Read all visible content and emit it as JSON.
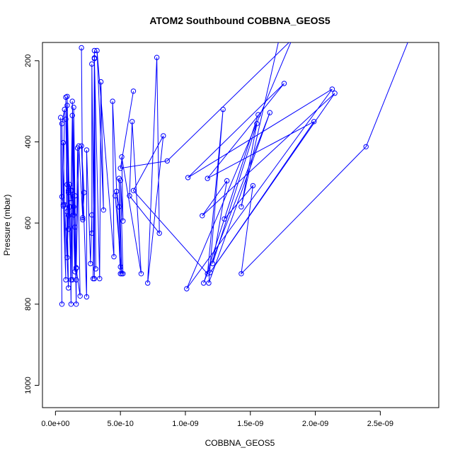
{
  "chart_data": {
    "type": "line",
    "title": "ATOM2 Southbound COBBNA_GEOS5",
    "xlabel": "COBBNA_GEOS5",
    "ylabel": "Pressure (mbar)",
    "xlim": [
      -1e-10,
      2.95e-09
    ],
    "ylim": [
      1055,
      155
    ],
    "y_reversed": true,
    "x_ticks": [
      0,
      5e-10,
      1e-09,
      1.5e-09,
      2e-09,
      2.5e-09
    ],
    "x_tick_labels": [
      "0.0e+00",
      "5.0e-10",
      "1.0e-09",
      "1.5e-09",
      "2.0e-09",
      "2.5e-09"
    ],
    "y_ticks": [
      200,
      400,
      600,
      800,
      1000
    ],
    "y_tick_labels": [
      "200",
      "400",
      "600",
      "800",
      "1000"
    ],
    "grid": false,
    "series": [
      {
        "color": "#0000ff",
        "marker": "open-circle",
        "points": [
          [
            5e-11,
            800
          ],
          [
            4e-11,
            340
          ],
          [
            5e-11,
            535
          ],
          [
            6e-11,
            555
          ],
          [
            5e-11,
            355
          ],
          [
            7e-11,
            320
          ],
          [
            6e-11,
            558
          ],
          [
            8e-11,
            740
          ],
          [
            6e-11,
            402
          ],
          [
            7e-11,
            555
          ],
          [
            1e-10,
            760
          ],
          [
            8e-11,
            344
          ],
          [
            9e-11,
            505
          ],
          [
            9e-11,
            572
          ],
          [
            1e-10,
            615
          ],
          [
            9e-11,
            310
          ],
          [
            1e-10,
            582
          ],
          [
            9e-11,
            685
          ],
          [
            8e-11,
            290
          ],
          [
            1e-10,
            520
          ],
          [
            1.2e-10,
            740
          ],
          [
            9e-11,
            288
          ],
          [
            1e-10,
            525
          ],
          [
            1.1e-10,
            560
          ],
          [
            1.2e-10,
            800
          ],
          [
            1.2e-10,
            520
          ],
          [
            1.1e-10,
            505
          ],
          [
            1.2e-10,
            550
          ],
          [
            1.3e-10,
            740
          ],
          [
            1.3e-10,
            335
          ],
          [
            1.2e-10,
            520
          ],
          [
            1.4e-10,
            580
          ],
          [
            1.3e-10,
            520
          ],
          [
            1.5e-10,
            720
          ],
          [
            1.4e-10,
            315
          ],
          [
            1.5e-10,
            533
          ],
          [
            1.6e-10,
            740
          ],
          [
            1.3e-10,
            300
          ],
          [
            1.4e-10,
            560
          ],
          [
            1.5e-10,
            610
          ],
          [
            1.6e-10,
            800
          ],
          [
            1.6e-10,
            710
          ],
          [
            1.7e-10,
            415
          ],
          [
            1.9e-10,
            780
          ],
          [
            1.6e-10,
            712
          ],
          [
            1.8e-10,
            410
          ],
          [
            2.1e-10,
            587
          ],
          [
            2e-10,
            168
          ],
          [
            2.1e-10,
            592
          ],
          [
            2.2e-10,
            525
          ],
          [
            2e-10,
            410
          ],
          [
            2.4e-10,
            782
          ],
          [
            2.4e-10,
            420
          ],
          [
            2.7e-10,
            700
          ],
          [
            2.8e-10,
            580
          ],
          [
            2.8e-10,
            625
          ],
          [
            2.8e-10,
            208
          ],
          [
            3e-10,
            737
          ],
          [
            3e-10,
            193
          ],
          [
            3.1e-10,
            713
          ],
          [
            3e-10,
            175
          ],
          [
            2.9e-10,
            737
          ],
          [
            3e-10,
            195
          ],
          [
            3.4e-10,
            737
          ],
          [
            3.5e-10,
            252
          ],
          [
            3.7e-10,
            568
          ],
          [
            3.2e-10,
            175
          ],
          [
            4.5e-10,
            683
          ],
          [
            4.4e-10,
            300
          ],
          [
            5e-10,
            725
          ],
          [
            4.9e-10,
            560
          ],
          [
            4.7e-10,
            522
          ],
          [
            4.6e-10,
            533
          ],
          [
            5.1e-10,
            725
          ],
          [
            4.9e-10,
            490
          ],
          [
            5e-10,
            708
          ],
          [
            5.2e-10,
            725
          ],
          [
            5e-10,
            495
          ],
          [
            5.2e-10,
            595
          ],
          [
            5.1e-10,
            437
          ],
          [
            6.6e-10,
            725
          ],
          [
            5.9e-10,
            350
          ],
          [
            5.7e-10,
            533
          ],
          [
            8e-10,
            625
          ],
          [
            7.8e-10,
            192
          ],
          [
            7.1e-10,
            748
          ],
          [
            8.3e-10,
            385
          ],
          [
            6e-10,
            520
          ],
          [
            1.17e-09,
            725
          ],
          [
            1.29e-09,
            320
          ],
          [
            1.18e-09,
            748
          ],
          [
            1.65e-09,
            328
          ],
          [
            1.14e-09,
            748
          ],
          [
            1.56e-09,
            333
          ],
          [
            1.3e-09,
            590
          ],
          [
            1.52e-09,
            508
          ],
          [
            1.43e-09,
            725
          ],
          [
            2.39e-09,
            412
          ],
          [
            2.72e-09,
            148
          ]
        ]
      },
      {
        "color": "#0000ff",
        "marker": "open-circle",
        "points": [
          [
            6e-10,
            275
          ],
          [
            5e-10,
            465
          ],
          [
            8.6e-10,
            447
          ],
          [
            1.82e-09,
            148
          ],
          [
            1.01e-09,
            762
          ],
          [
            2.13e-09,
            270
          ],
          [
            1.02e-09,
            488
          ],
          [
            1.76e-09,
            256
          ],
          [
            1.17e-09,
            490
          ],
          [
            1.99e-09,
            350
          ],
          [
            1.19e-09,
            722
          ],
          [
            2.15e-09,
            280
          ],
          [
            1.13e-09,
            582
          ],
          [
            1.32e-09,
            496
          ],
          [
            1.21e-09,
            700
          ],
          [
            1.55e-09,
            355
          ],
          [
            1.43e-09,
            560
          ],
          [
            1.72e-09,
            148
          ]
        ]
      }
    ]
  }
}
